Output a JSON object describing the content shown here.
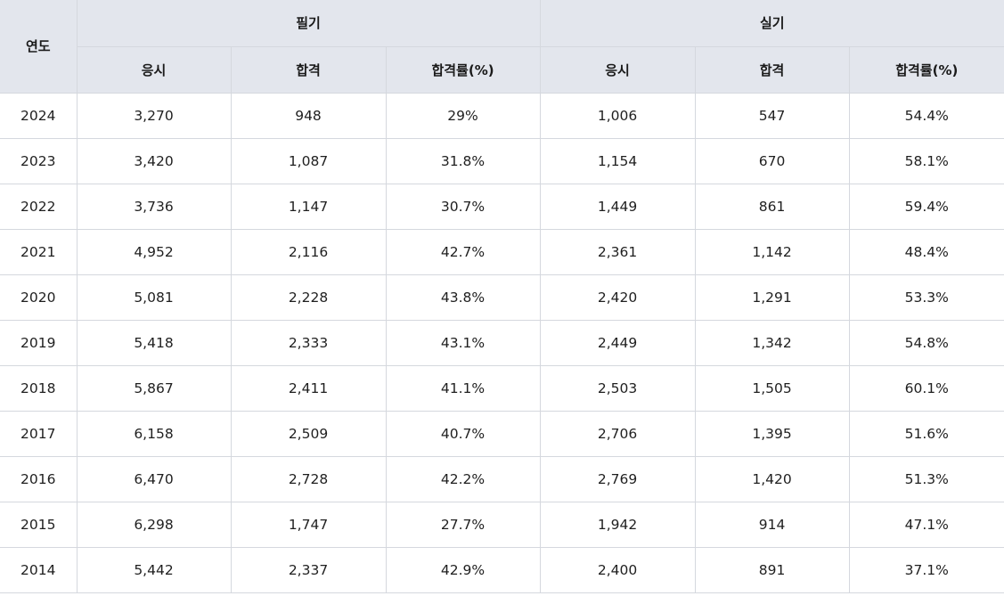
{
  "table": {
    "header": {
      "year": "연도",
      "groups": [
        "필기",
        "실기"
      ],
      "subcolumns": [
        "응시",
        "합격",
        "합격률(%)",
        "응시",
        "합격",
        "합격률(%)"
      ]
    },
    "rows": [
      [
        "2024",
        "3,270",
        "948",
        "29%",
        "1,006",
        "547",
        "54.4%"
      ],
      [
        "2023",
        "3,420",
        "1,087",
        "31.8%",
        "1,154",
        "670",
        "58.1%"
      ],
      [
        "2022",
        "3,736",
        "1,147",
        "30.7%",
        "1,449",
        "861",
        "59.4%"
      ],
      [
        "2021",
        "4,952",
        "2,116",
        "42.7%",
        "2,361",
        "1,142",
        "48.4%"
      ],
      [
        "2020",
        "5,081",
        "2,228",
        "43.8%",
        "2,420",
        "1,291",
        "53.3%"
      ],
      [
        "2019",
        "5,418",
        "2,333",
        "43.1%",
        "2,449",
        "1,342",
        "54.8%"
      ],
      [
        "2018",
        "5,867",
        "2,411",
        "41.1%",
        "2,503",
        "1,505",
        "60.1%"
      ],
      [
        "2017",
        "6,158",
        "2,509",
        "40.7%",
        "2,706",
        "1,395",
        "51.6%"
      ],
      [
        "2016",
        "6,470",
        "2,728",
        "42.2%",
        "2,769",
        "1,420",
        "51.3%"
      ],
      [
        "2015",
        "6,298",
        "1,747",
        "27.7%",
        "1,942",
        "914",
        "47.1%"
      ],
      [
        "2014",
        "5,442",
        "2,337",
        "42.9%",
        "2,400",
        "891",
        "37.1%"
      ]
    ]
  },
  "colors": {
    "header_background": "#e3e6ed",
    "border": "#d5d8de",
    "row_background": "#ffffff",
    "text": "#1a1a1a"
  }
}
